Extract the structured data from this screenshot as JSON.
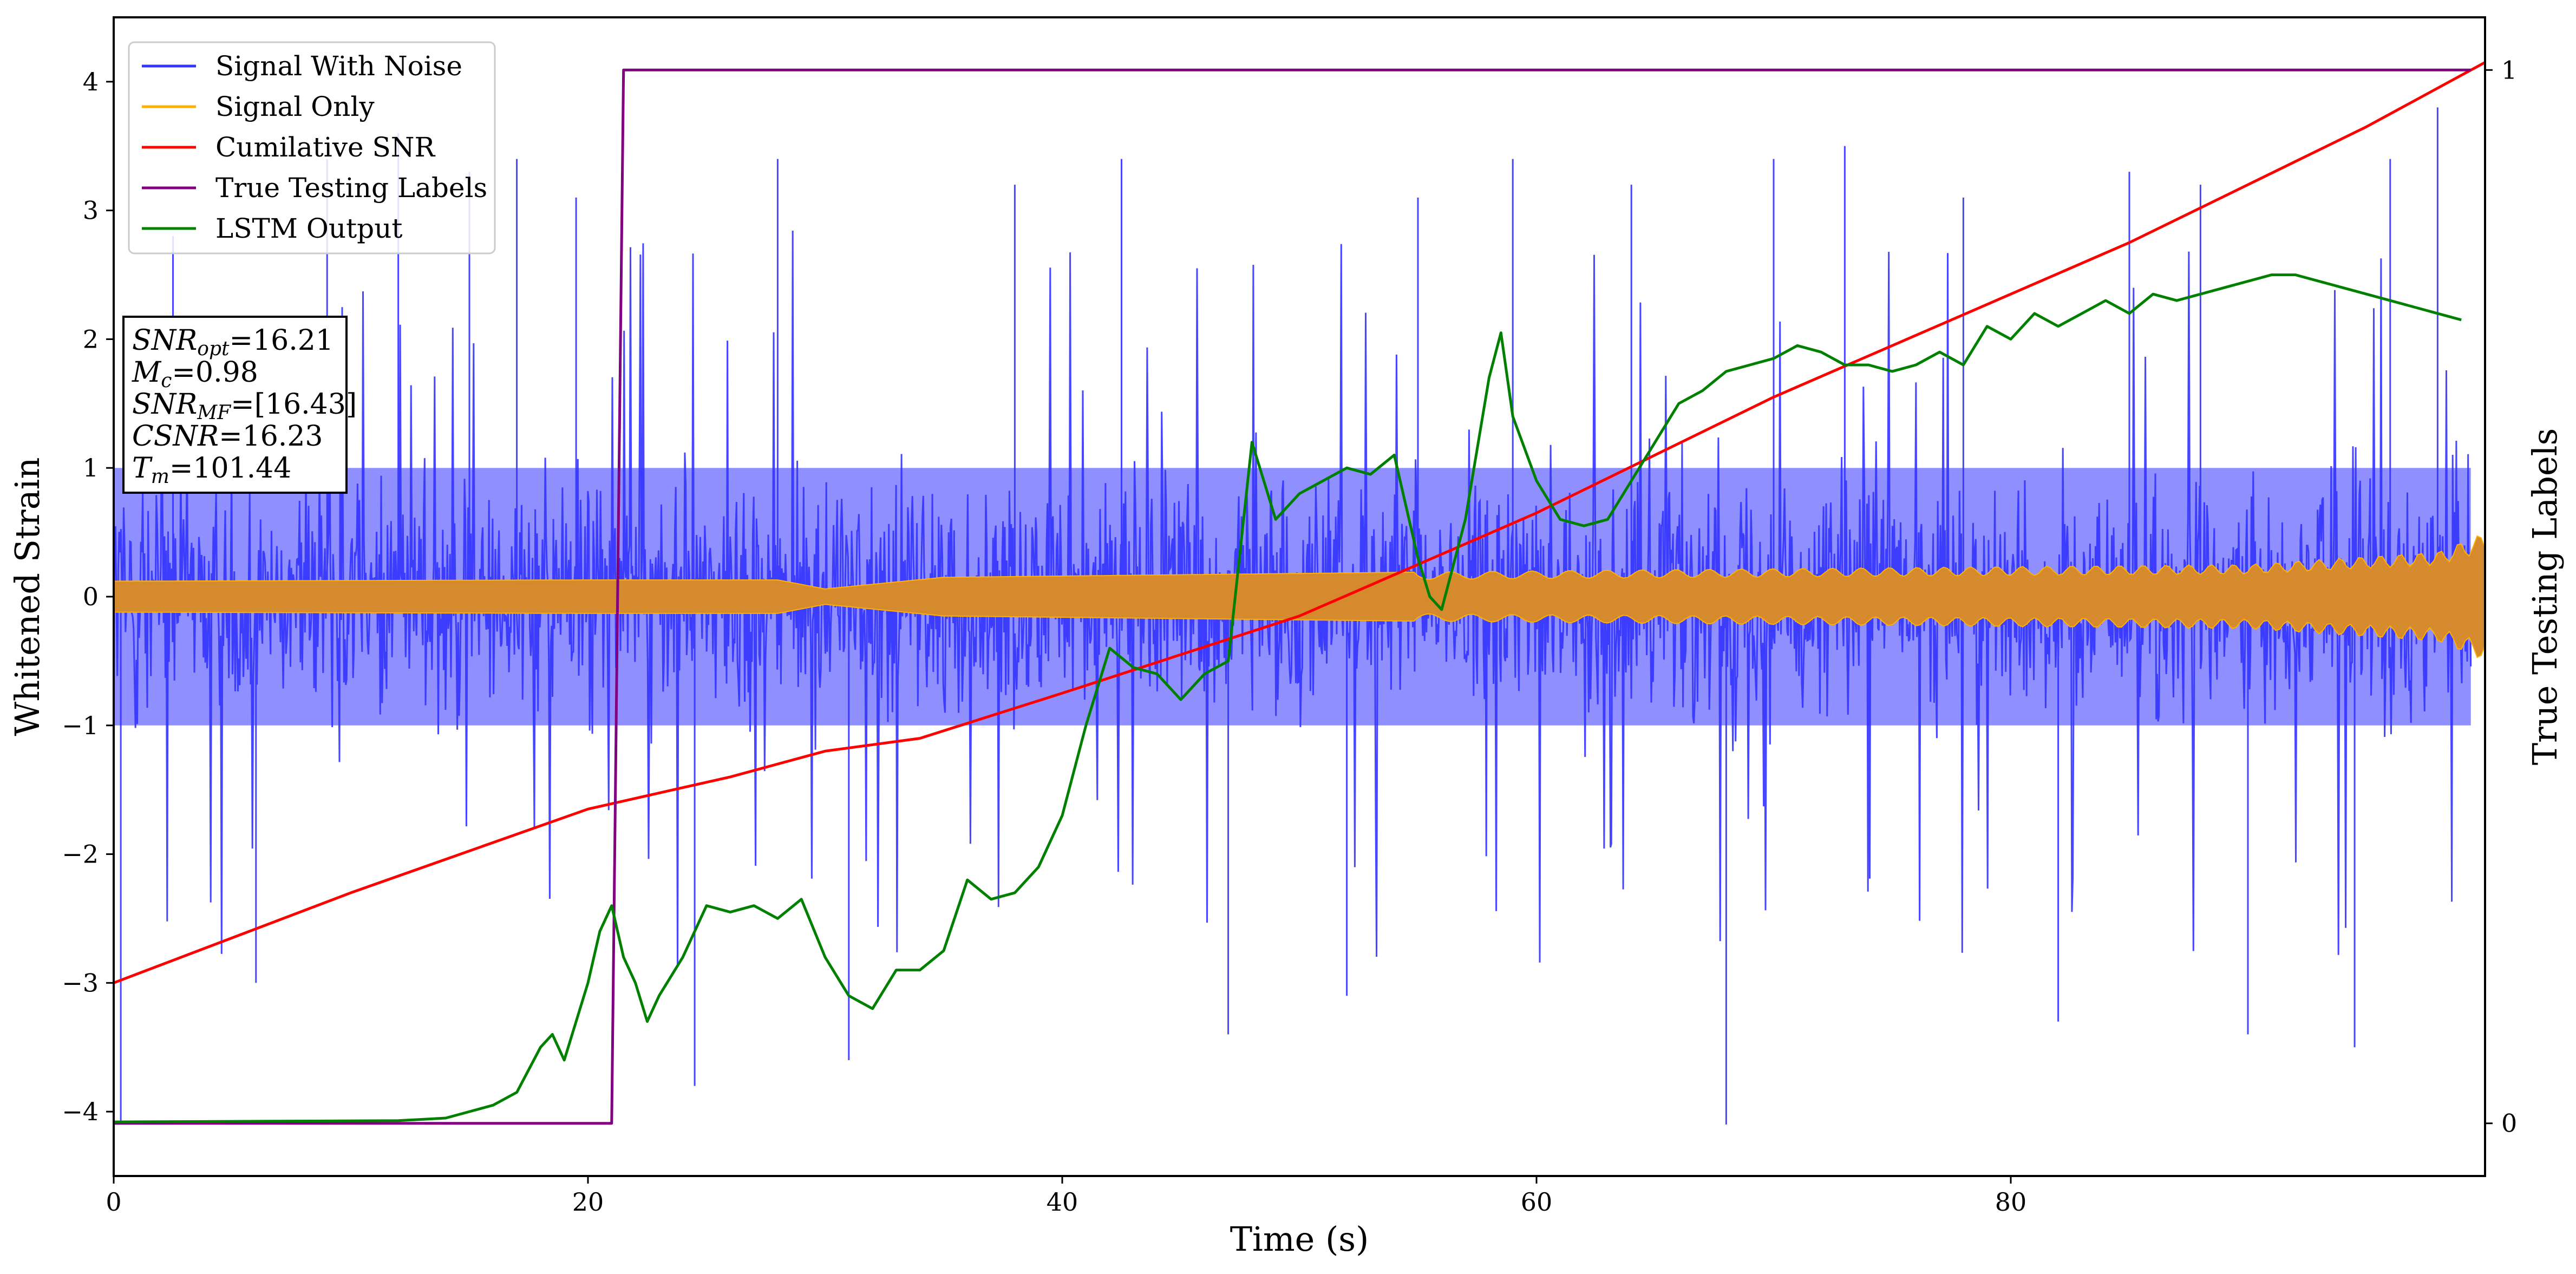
{
  "chart_data": {
    "type": "line",
    "xlabel": "Time (s)",
    "ylabel": "Whitened Strain",
    "ylabel_right": "True Testing Labels",
    "xlim": [
      0,
      100
    ],
    "ylim": [
      -4.5,
      4.5
    ],
    "ylim_right": [
      -0.05,
      1.05
    ],
    "xticks": [
      0,
      20,
      40,
      60,
      80
    ],
    "yticks": [
      -4,
      -3,
      -2,
      -1,
      0,
      1,
      2,
      3,
      4
    ],
    "yticks_right": [
      0,
      1
    ],
    "grid": false,
    "legend_position": "top-left",
    "series": [
      {
        "name": "Signal With Noise",
        "color": "#3333ff",
        "style": "noise",
        "band_abs": 1.0,
        "peaks": [
          [
            0.3,
            -4.1
          ],
          [
            2.5,
            2.8
          ],
          [
            6,
            -3.0
          ],
          [
            9,
            3.4
          ],
          [
            12,
            3.6
          ],
          [
            15,
            3.3
          ],
          [
            17,
            3.4
          ],
          [
            19.5,
            3.1
          ],
          [
            24.5,
            -3.8
          ],
          [
            28,
            3.4
          ],
          [
            31,
            -3.6
          ],
          [
            38,
            3.2
          ],
          [
            42.5,
            3.4
          ],
          [
            47,
            -3.4
          ],
          [
            52,
            -3.1
          ],
          [
            55,
            3.1
          ],
          [
            59,
            3.4
          ],
          [
            64,
            3.2
          ],
          [
            68,
            -4.1
          ],
          [
            70,
            3.4
          ],
          [
            73,
            3.5
          ],
          [
            78,
            3.1
          ],
          [
            82,
            -3.3
          ],
          [
            85,
            3.3
          ],
          [
            88,
            3.2
          ],
          [
            90,
            -3.4
          ],
          [
            94.5,
            -3.5
          ],
          [
            96,
            3.4
          ],
          [
            98,
            3.8
          ]
        ]
      },
      {
        "name": "Signal Only",
        "color": "#ffb000",
        "style": "chirp",
        "envelope": [
          [
            0,
            0.12
          ],
          [
            20,
            0.13
          ],
          [
            28,
            0.13
          ],
          [
            30,
            0.06
          ],
          [
            35,
            0.15
          ],
          [
            60,
            0.2
          ],
          [
            90,
            0.25
          ],
          [
            98,
            0.35
          ],
          [
            100,
            0.5
          ]
        ]
      },
      {
        "name": "Cumilative SNR",
        "color": "#ff0000",
        "style": "line",
        "x": [
          0,
          10,
          20,
          26,
          30,
          34,
          40,
          45,
          50,
          55,
          60,
          65,
          70,
          75,
          80,
          85,
          90,
          95,
          100
        ],
        "y": [
          -3.0,
          -2.3,
          -1.65,
          -1.4,
          -1.2,
          -1.1,
          -0.75,
          -0.45,
          -0.15,
          0.25,
          0.65,
          1.1,
          1.55,
          1.95,
          2.35,
          2.75,
          3.2,
          3.65,
          4.15
        ]
      },
      {
        "name": "True Testing Labels",
        "color": "#800080",
        "axis": "right",
        "style": "line",
        "x": [
          0,
          21.0,
          21.5,
          99.4
        ],
        "y": [
          0,
          0,
          1,
          1
        ]
      },
      {
        "name": "LSTM Output",
        "color": "#008000",
        "style": "line",
        "x": [
          0,
          12,
          14,
          15,
          16,
          17,
          18,
          18.5,
          19,
          19.5,
          20,
          20.5,
          21,
          21.5,
          22,
          22.5,
          23,
          24,
          25,
          26,
          27,
          28,
          29,
          30,
          31,
          32,
          33,
          34,
          35,
          36,
          37,
          38,
          39,
          40,
          41,
          42,
          43,
          44,
          45,
          46,
          47,
          48,
          49,
          50,
          51,
          52,
          53,
          54,
          55,
          55.5,
          56,
          57,
          58,
          58.5,
          59,
          60,
          61,
          62,
          63,
          64,
          65,
          66,
          67,
          68,
          69,
          70,
          71,
          72,
          73,
          74,
          75,
          76,
          77,
          78,
          79,
          80,
          81,
          82,
          83,
          84,
          85,
          86,
          87,
          88,
          89,
          90,
          91,
          92,
          93,
          94,
          95,
          96,
          97,
          98,
          99
        ],
        "y": [
          -4.08,
          -4.07,
          -4.05,
          -4.0,
          -3.95,
          -3.85,
          -3.5,
          -3.4,
          -3.6,
          -3.3,
          -3.0,
          -2.6,
          -2.4,
          -2.8,
          -3.0,
          -3.3,
          -3.1,
          -2.8,
          -2.4,
          -2.45,
          -2.4,
          -2.5,
          -2.35,
          -2.8,
          -3.1,
          -3.2,
          -2.9,
          -2.9,
          -2.75,
          -2.2,
          -2.35,
          -2.3,
          -2.1,
          -1.7,
          -1.0,
          -0.4,
          -0.55,
          -0.6,
          -0.8,
          -0.6,
          -0.5,
          1.2,
          0.6,
          0.8,
          0.9,
          1.0,
          0.95,
          1.1,
          0.3,
          0.0,
          -0.1,
          0.6,
          1.7,
          2.05,
          1.4,
          0.9,
          0.6,
          0.55,
          0.6,
          0.9,
          1.2,
          1.5,
          1.6,
          1.75,
          1.8,
          1.85,
          1.95,
          1.9,
          1.8,
          1.8,
          1.75,
          1.8,
          1.9,
          1.8,
          2.1,
          2.0,
          2.2,
          2.1,
          2.2,
          2.3,
          2.2,
          2.35,
          2.3,
          2.35,
          2.4,
          2.45,
          2.5,
          2.5,
          2.45,
          2.4,
          2.35,
          2.3,
          2.25,
          2.2,
          2.15
        ]
      }
    ],
    "annotation": {
      "lines": [
        {
          "sym": "SNR",
          "sub": "opt",
          "value": "=16.21"
        },
        {
          "sym": "M",
          "sub": "c",
          "value": "=0.98"
        },
        {
          "sym": "SNR",
          "sub": "MF",
          "value": "=[16.43]"
        },
        {
          "sym": "CSNR",
          "sub": "",
          "value": "=16.23"
        },
        {
          "sym": "T",
          "sub": "m",
          "value": "=101.44"
        }
      ]
    }
  }
}
